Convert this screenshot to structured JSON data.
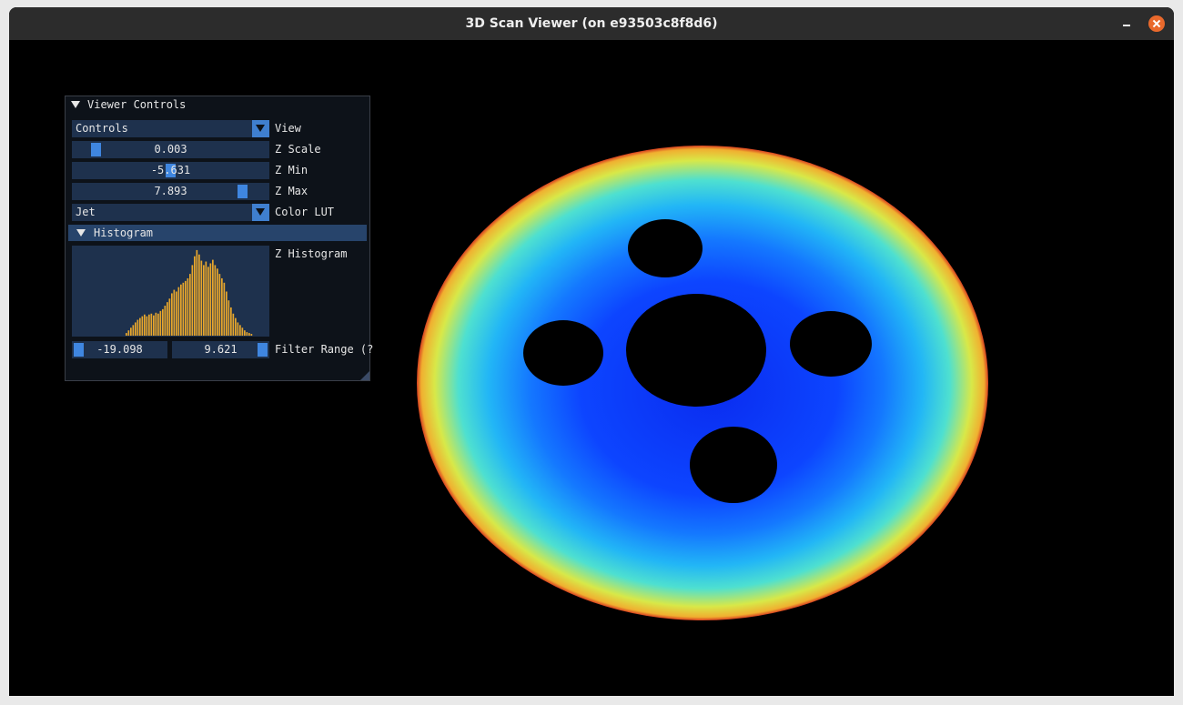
{
  "window": {
    "title": "3D Scan Viewer (on e93503c8f8d6)"
  },
  "panel": {
    "title": "Viewer Controls",
    "rows": [
      {
        "value": "Controls",
        "label": "View"
      },
      {
        "value": "0.003",
        "label": "Z Scale"
      },
      {
        "value": "-5.631",
        "label": "Z Min"
      },
      {
        "value": "7.893",
        "label": "Z Max"
      },
      {
        "value": "Jet",
        "label": "Color LUT"
      }
    ],
    "histogram": {
      "title": "Histogram",
      "label": "Z Histogram",
      "values": [
        3,
        6,
        9,
        12,
        15,
        18,
        20,
        22,
        24,
        22,
        24,
        25,
        23,
        26,
        25,
        28,
        30,
        34,
        38,
        42,
        48,
        52,
        50,
        55,
        58,
        60,
        62,
        65,
        70,
        80,
        90,
        97,
        92,
        85,
        80,
        84,
        78,
        82,
        86,
        80,
        76,
        70,
        65,
        60,
        50,
        40,
        32,
        25,
        20,
        15,
        12,
        9,
        6,
        4,
        3,
        2
      ]
    },
    "filter": {
      "min": "-19.098",
      "max": "9.621",
      "label": "Filter Range (?"
    }
  }
}
